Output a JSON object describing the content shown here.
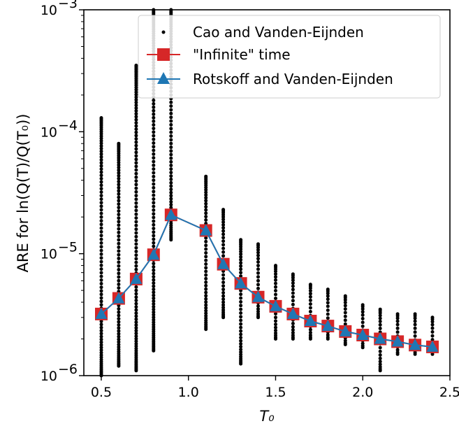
{
  "chart_data": {
    "type": "scatter",
    "xlabel": "T₀",
    "ylabel": "ARE for ln(Q(T)/Q(T₀))",
    "xlim": [
      0.4,
      2.5
    ],
    "ylim": [
      1e-06,
      0.001
    ],
    "yscale": "log",
    "x_ticks": [
      "0.5",
      "1.0",
      "1.5",
      "2.0",
      "2.5"
    ],
    "y_tick_base": "10",
    "y_tick_exponents": [
      "−6",
      "−5",
      "−4",
      "−3"
    ],
    "legend_position": "upper-right",
    "grid": false,
    "scatter_series": {
      "name": "Cao and Vanden-Eijnden",
      "color": "#000000",
      "groups": [
        {
          "x": 0.5,
          "y_min": 1e-06,
          "y_max": 0.00013
        },
        {
          "x": 0.6,
          "y_min": 1.2e-06,
          "y_max": 8e-05
        },
        {
          "x": 0.7,
          "y_min": 1.1e-06,
          "y_max": 0.00035
        },
        {
          "x": 0.8,
          "y_min": 1.6e-06,
          "y_max": 0.001
        },
        {
          "x": 0.9,
          "y_min": 1.3e-05,
          "y_max": 0.001
        },
        {
          "x": 1.1,
          "y_min": 2.4e-06,
          "y_max": 4.3e-05
        },
        {
          "x": 1.2,
          "y_min": 3e-06,
          "y_max": 2.3e-05
        },
        {
          "x": 1.3,
          "y_min": 1.25e-06,
          "y_max": 1.3e-05
        },
        {
          "x": 1.4,
          "y_min": 3e-06,
          "y_max": 1.2e-05
        },
        {
          "x": 1.5,
          "y_min": 2e-06,
          "y_max": 8e-06
        },
        {
          "x": 1.6,
          "y_min": 2e-06,
          "y_max": 6.8e-06
        },
        {
          "x": 1.7,
          "y_min": 2e-06,
          "y_max": 5.6e-06
        },
        {
          "x": 1.8,
          "y_min": 2e-06,
          "y_max": 5.1e-06
        },
        {
          "x": 1.9,
          "y_min": 1.8e-06,
          "y_max": 4.5e-06
        },
        {
          "x": 2.0,
          "y_min": 1.7e-06,
          "y_max": 3.8e-06
        },
        {
          "x": 2.1,
          "y_min": 1.1e-06,
          "y_max": 3.5e-06
        },
        {
          "x": 2.2,
          "y_min": 1.5e-06,
          "y_max": 3.2e-06
        },
        {
          "x": 2.3,
          "y_min": 1.5e-06,
          "y_max": 3.2e-06
        },
        {
          "x": 2.4,
          "y_min": 1.5e-06,
          "y_max": 3e-06
        }
      ]
    },
    "series": [
      {
        "name": "\"Infinite\" time",
        "color": "#d62728",
        "marker": "square",
        "x": [
          0.5,
          0.6,
          0.7,
          0.8,
          0.9,
          1.1,
          1.2,
          1.3,
          1.4,
          1.5,
          1.6,
          1.7,
          1.8,
          1.9,
          2.0,
          2.1,
          2.2,
          2.3,
          2.4
        ],
        "y": [
          3.2e-06,
          4.3e-06,
          6.2e-06,
          9.8e-06,
          2.08e-05,
          1.55e-05,
          8.2e-06,
          5.7e-06,
          4.4e-06,
          3.7e-06,
          3.2e-06,
          2.8e-06,
          2.55e-06,
          2.3e-06,
          2.15e-06,
          2e-06,
          1.9e-06,
          1.78e-06,
          1.72e-06
        ]
      },
      {
        "name": "Rotskoff and Vanden-Eijnden",
        "color": "#1f77b4",
        "marker": "triangle",
        "x": [
          0.5,
          0.6,
          0.7,
          0.8,
          0.9,
          1.1,
          1.2,
          1.3,
          1.4,
          1.5,
          1.6,
          1.7,
          1.8,
          1.9,
          2.0,
          2.1,
          2.2,
          2.3,
          2.4
        ],
        "y": [
          3.2e-06,
          4.3e-06,
          6.2e-06,
          9.8e-06,
          2.08e-05,
          1.55e-05,
          8.2e-06,
          5.7e-06,
          4.4e-06,
          3.7e-06,
          3.2e-06,
          2.8e-06,
          2.55e-06,
          2.3e-06,
          2.15e-06,
          2e-06,
          1.9e-06,
          1.78e-06,
          1.72e-06
        ]
      }
    ]
  }
}
